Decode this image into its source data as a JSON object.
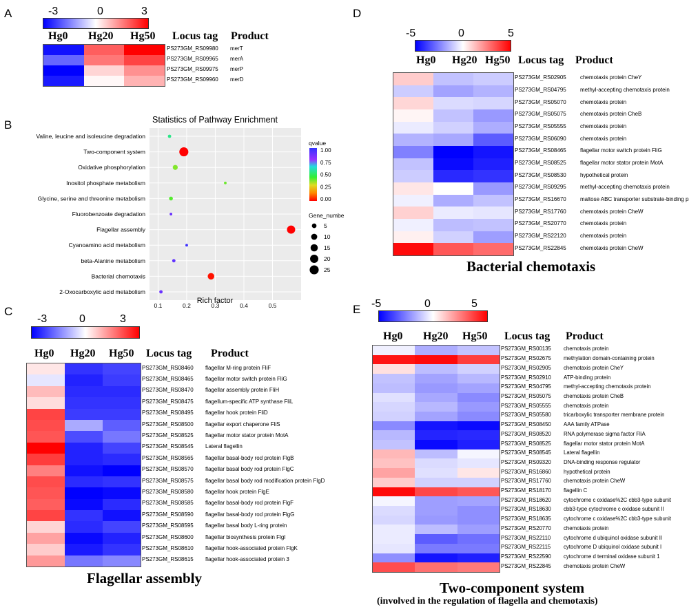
{
  "panel_a": {
    "letter": "A",
    "scale": {
      "min": "-3",
      "mid": "0",
      "max": "3"
    },
    "columns": [
      "Hg0",
      "Hg20",
      "Hg50"
    ],
    "locus_header": "Locus tag",
    "product_header": "Product",
    "rows": [
      {
        "tag": "PS273GM_RS09980",
        "product": "merT",
        "values": [
          -2.8,
          1.9,
          3.0
        ]
      },
      {
        "tag": "PS273GM_RS09965",
        "product": "merA",
        "values": [
          -1.8,
          1.6,
          2.2
        ]
      },
      {
        "tag": "PS273GM_RS09975",
        "product": "merP",
        "values": [
          -3.0,
          0.5,
          1.3
        ]
      },
      {
        "tag": "PS273GM_RS09960",
        "product": "merD",
        "values": [
          -2.7,
          0.1,
          0.9
        ]
      }
    ]
  },
  "panel_b": {
    "letter": "B",
    "chart_data": {
      "type": "scatter",
      "title": "Statistics of Pathway Enrichment",
      "xlabel": "Rich factor",
      "ylabel": "",
      "xlim": [
        0.07,
        0.6
      ],
      "xticks": [
        "0.1",
        "0.2",
        "0.3",
        "0.4",
        "0.5"
      ],
      "categories": [
        "Valine, leucine and isoleucine degradation",
        "Two-component system",
        "Oxidative phosphorylation",
        "Inositol phosphate metabolism",
        "Glycine, serine and threonine metabolism",
        "Fluorobenzoate degradation",
        "Flagellar assembly",
        "Cyanoamino acid metabolism",
        "beta-Alanine metabolism",
        "Bacterial chemotaxis",
        "2-Oxocarboxylic acid metabolism"
      ],
      "points": [
        {
          "pathway": "Valine, leucine and isoleucine degradation",
          "rich_factor": 0.14,
          "gene_number": 2,
          "qvalue": 0.55
        },
        {
          "pathway": "Two-component system",
          "rich_factor": 0.19,
          "gene_number": 25,
          "qvalue": 0.0
        },
        {
          "pathway": "Oxidative phosphorylation",
          "rich_factor": 0.16,
          "gene_number": 6,
          "qvalue": 0.38
        },
        {
          "pathway": "Inositol phosphate metabolism",
          "rich_factor": 0.335,
          "gene_number": 1,
          "qvalue": 0.4
        },
        {
          "pathway": "Glycine, serine and threonine metabolism",
          "rich_factor": 0.145,
          "gene_number": 3,
          "qvalue": 0.42
        },
        {
          "pathway": "Fluorobenzoate degradation",
          "rich_factor": 0.145,
          "gene_number": 1,
          "qvalue": 0.88
        },
        {
          "pathway": "Flagellar assembly",
          "rich_factor": 0.565,
          "gene_number": 20,
          "qvalue": 0.0
        },
        {
          "pathway": "Cyanoamino acid metabolism",
          "rich_factor": 0.2,
          "gene_number": 1,
          "qvalue": 0.97
        },
        {
          "pathway": "beta-Alanine metabolism",
          "rich_factor": 0.155,
          "gene_number": 2,
          "qvalue": 0.9
        },
        {
          "pathway": "Bacterial chemotaxis",
          "rich_factor": 0.285,
          "gene_number": 12,
          "qvalue": 0.02
        },
        {
          "pathway": "2-Oxocarboxylic acid metabolism",
          "rich_factor": 0.11,
          "gene_number": 2,
          "qvalue": 0.88
        }
      ],
      "qvalue_legend": {
        "title": "qvalue",
        "ticks": [
          "1.00",
          "0.75",
          "0.50",
          "0.25",
          "0.00"
        ]
      },
      "size_legend": {
        "title": "Gene_number",
        "levels": [
          "5",
          "10",
          "15",
          "20",
          "25"
        ]
      }
    }
  },
  "panel_c": {
    "letter": "C",
    "scale": {
      "min": "-3",
      "mid": "0",
      "max": "3"
    },
    "columns": [
      "Hg0",
      "Hg20",
      "Hg50"
    ],
    "locus_header": "Locus tag",
    "product_header": "Product",
    "caption": "Flagellar assembly",
    "rows": [
      {
        "tag": "PS273GM_RS08460",
        "product": "flagellar M-ring protein FliF",
        "values": [
          0.3,
          -2.4,
          -2.2
        ]
      },
      {
        "tag": "PS273GM_RS08465",
        "product": "flagellar motor switch protein FliG",
        "values": [
          -0.3,
          -2.6,
          -2.3
        ]
      },
      {
        "tag": "PS273GM_RS08470",
        "product": "flagellar assembly protein FliH",
        "values": [
          0.8,
          -2.5,
          -2.5
        ]
      },
      {
        "tag": "PS273GM_RS08475",
        "product": "flagellum-specific ATP synthase FliL",
        "values": [
          0.4,
          -2.4,
          -2.4
        ]
      },
      {
        "tag": "PS273GM_RS08495",
        "product": "flagellar hook protein FliD",
        "values": [
          2.2,
          -2.3,
          -2.3
        ]
      },
      {
        "tag": "PS273GM_RS08500",
        "product": "flagellar export chaperone FliS",
        "values": [
          2.1,
          -1.0,
          -1.9
        ]
      },
      {
        "tag": "PS273GM_RS08525",
        "product": "flagellar motor stator protein MotA",
        "values": [
          2.0,
          -2.1,
          -1.6
        ]
      },
      {
        "tag": "PS273GM_RS08545",
        "product": "Lateral flagellin",
        "values": [
          3.0,
          -2.6,
          -2.2
        ]
      },
      {
        "tag": "PS273GM_RS08565",
        "product": "flagellar basal-body rod protein FlgB",
        "values": [
          2.3,
          -2.6,
          -2.5
        ]
      },
      {
        "tag": "PS273GM_RS08570",
        "product": "flagellar basal body rod protein FlgC",
        "values": [
          1.5,
          -2.8,
          -3.0
        ]
      },
      {
        "tag": "PS273GM_RS08575",
        "product": "flagellar basal body rod modification protein FlgD",
        "values": [
          2.1,
          -2.5,
          -2.4
        ]
      },
      {
        "tag": "PS273GM_RS08580",
        "product": "flagellar hook protein FlgE",
        "values": [
          2.0,
          -3.0,
          -2.9
        ]
      },
      {
        "tag": "PS273GM_RS08585",
        "product": "flagellar basal-body rod protein FlgF",
        "values": [
          1.9,
          -2.9,
          -2.5
        ]
      },
      {
        "tag": "PS273GM_RS08590",
        "product": "flagellar basal-body rod protein FlgG",
        "values": [
          2.2,
          -2.4,
          -2.8
        ]
      },
      {
        "tag": "PS273GM_RS08595",
        "product": "flagellar basal body L-ring protein",
        "values": [
          0.5,
          -2.5,
          -2.2
        ]
      },
      {
        "tag": "PS273GM_RS08600",
        "product": "flagellar biosynthesis protein FlgI",
        "values": [
          1.1,
          -2.9,
          -2.6
        ]
      },
      {
        "tag": "PS273GM_RS08610",
        "product": "flagellar hook-associated protein FlgK",
        "values": [
          0.6,
          -2.7,
          -2.4
        ]
      },
      {
        "tag": "PS273GM_RS08615",
        "product": "flagellar hook-associated protein 3",
        "values": [
          1.2,
          -1.6,
          -1.4
        ]
      }
    ]
  },
  "panel_d": {
    "letter": "D",
    "scale": {
      "min": "-5",
      "mid": "0",
      "max": "5"
    },
    "columns": [
      "Hg0",
      "Hg20",
      "Hg50"
    ],
    "locus_header": "Locus tag",
    "product_header": "Product",
    "caption": "Bacterial chemotaxis",
    "rows": [
      {
        "tag": "PS273GM_RS02905",
        "product": "chemotaxis protein CheY",
        "values": [
          1.0,
          -1.2,
          -1.0
        ]
      },
      {
        "tag": "PS273GM_RS04795",
        "product": "methyl-accepting chemotaxis protein",
        "values": [
          -1.0,
          -1.8,
          -1.5
        ]
      },
      {
        "tag": "PS273GM_RS05070",
        "product": "chemotaxis protein",
        "values": [
          0.8,
          -0.7,
          -0.8
        ]
      },
      {
        "tag": "PS273GM_RS05075",
        "product": "chemotaxis protein CheB",
        "values": [
          0.2,
          -1.2,
          -2.0
        ]
      },
      {
        "tag": "PS273GM_RS05555",
        "product": "chemotaxis protein",
        "values": [
          -0.4,
          -0.9,
          -1.6
        ]
      },
      {
        "tag": "PS273GM_RS06090",
        "product": "chemotaxis protein",
        "values": [
          -1.5,
          -1.7,
          -3.2
        ]
      },
      {
        "tag": "PS273GM_RS08465",
        "product": "flagellar motor switch protein FliG",
        "values": [
          -2.5,
          -5.0,
          -4.6
        ]
      },
      {
        "tag": "PS273GM_RS08525",
        "product": "flagellar motor stator protein MotA",
        "values": [
          -1.2,
          -4.8,
          -4.4
        ]
      },
      {
        "tag": "PS273GM_RS08530",
        "product": "hypothetical protein",
        "values": [
          -1.0,
          -4.2,
          -4.0
        ]
      },
      {
        "tag": "PS273GM_RS09295",
        "product": "methyl-accepting chemotaxis protein",
        "values": [
          0.5,
          0.0,
          -2.0
        ]
      },
      {
        "tag": "PS273GM_RS16670",
        "product": "maltose ABC transporter substrate-binding protein MalE",
        "values": [
          -0.3,
          -1.6,
          -1.2
        ]
      },
      {
        "tag": "PS273GM_RS17760",
        "product": "chemotaxis protein CheW",
        "values": [
          0.9,
          -0.4,
          -0.5
        ]
      },
      {
        "tag": "PS273GM_RS20770",
        "product": "chemotaxis protein",
        "values": [
          -0.3,
          -1.3,
          -1.2
        ]
      },
      {
        "tag": "PS273GM_RS22120",
        "product": "chemotaxis protein",
        "values": [
          0.3,
          -0.9,
          -1.9
        ]
      },
      {
        "tag": "PS273GM_RS22845",
        "product": "chemotaxis protein CheW",
        "values": [
          4.8,
          3.3,
          2.9
        ]
      }
    ]
  },
  "panel_e": {
    "letter": "E",
    "scale": {
      "min": "-5",
      "mid": "0",
      "max": "5"
    },
    "columns": [
      "Hg0",
      "Hg20",
      "Hg50"
    ],
    "locus_header": "Locus tag",
    "product_header": "Product",
    "caption": "Two-component system",
    "subcaption": "(involved in the regulation of flagella and chemotaxis)",
    "rows": [
      {
        "tag": "PS273GM_RS00135",
        "product": "chemotaxis protein",
        "values": [
          -0.3,
          -1.6,
          -1.2
        ]
      },
      {
        "tag": "PS273GM_RS02675",
        "product": "methylation domain-containing protein",
        "values": [
          4.6,
          4.8,
          3.8
        ]
      },
      {
        "tag": "PS273GM_RS02905",
        "product": "chemotaxis protein CheY",
        "values": [
          0.6,
          -1.3,
          -0.9
        ]
      },
      {
        "tag": "PS273GM_RS02910",
        "product": "ATP-binding protein",
        "values": [
          -1.2,
          -1.8,
          -1.4
        ]
      },
      {
        "tag": "PS273GM_RS04795",
        "product": "methyl-accepting chemotaxis protein",
        "values": [
          -1.3,
          -2.0,
          -1.8
        ]
      },
      {
        "tag": "PS273GM_RS05075",
        "product": "chemotaxis protein CheB",
        "values": [
          -0.6,
          -1.7,
          -2.3
        ]
      },
      {
        "tag": "PS273GM_RS05555",
        "product": "chemotaxis protein",
        "values": [
          -0.8,
          -1.4,
          -2.0
        ]
      },
      {
        "tag": "PS273GM_RS05580",
        "product": "tricarboxylic transporter membrane protein",
        "values": [
          -0.9,
          -1.8,
          -2.3
        ]
      },
      {
        "tag": "PS273GM_RS08450",
        "product": "AAA family ATPase",
        "values": [
          -2.3,
          -4.6,
          -4.8
        ]
      },
      {
        "tag": "PS273GM_RS08520",
        "product": "RNA polymerase sigma factor FliA",
        "values": [
          -1.4,
          -4.3,
          -4.2
        ]
      },
      {
        "tag": "PS273GM_RS08525",
        "product": "flagellar motor stator protein MotA",
        "values": [
          -1.2,
          -4.8,
          -4.4
        ]
      },
      {
        "tag": "PS273GM_RS08545",
        "product": "Lateral flagellin",
        "values": [
          1.4,
          -1.3,
          -0.2
        ]
      },
      {
        "tag": "PS273GM_RS09320",
        "product": "DNA-binding response regulator",
        "values": [
          1.2,
          -0.7,
          -0.5
        ]
      },
      {
        "tag": "PS273GM_RS16860",
        "product": "hypothetical protein",
        "values": [
          1.8,
          -0.6,
          0.5
        ]
      },
      {
        "tag": "PS273GM_RS17760",
        "product": "chemotaxis protein CheW",
        "values": [
          1.0,
          -0.9,
          -0.9
        ]
      },
      {
        "tag": "PS273GM_RS18170",
        "product": "flagellin C",
        "values": [
          4.8,
          3.6,
          3.3
        ]
      },
      {
        "tag": "PS273GM_RS18620",
        "product": "cytochrome c oxidase%2C cbb3-type subunit",
        "values": [
          -0.2,
          -1.9,
          -1.8
        ]
      },
      {
        "tag": "PS273GM_RS18630",
        "product": "cbb3-type cytochrome c oxidase subunit II",
        "values": [
          -0.7,
          -1.9,
          -2.2
        ]
      },
      {
        "tag": "PS273GM_RS18635",
        "product": "cytochrome c oxidase%2C cbb3-type subunit",
        "values": [
          -0.8,
          -2.0,
          -2.2
        ]
      },
      {
        "tag": "PS273GM_RS20770",
        "product": "chemotaxis protein",
        "values": [
          -0.4,
          -1.3,
          -1.9
        ]
      },
      {
        "tag": "PS273GM_RS22110",
        "product": "cytochrome d ubiquinol oxidase subunit II",
        "values": [
          -0.4,
          -3.2,
          -2.8
        ]
      },
      {
        "tag": "PS273GM_RS22115",
        "product": "cytochrome D ubiquinol oxidase subunit I",
        "values": [
          -0.5,
          -2.6,
          -2.6
        ]
      },
      {
        "tag": "PS273GM_RS22590",
        "product": "cytochrome d terminal oxidase subunit 1",
        "values": [
          -2.2,
          -4.6,
          -4.4
        ]
      },
      {
        "tag": "PS273GM_RS22845",
        "product": "chemotaxis protein CheW",
        "values": [
          3.5,
          2.8,
          2.6
        ]
      }
    ]
  },
  "colors": {
    "negative": "#0000ff",
    "neutral": "#ffffff",
    "positive": "#ff0000"
  }
}
